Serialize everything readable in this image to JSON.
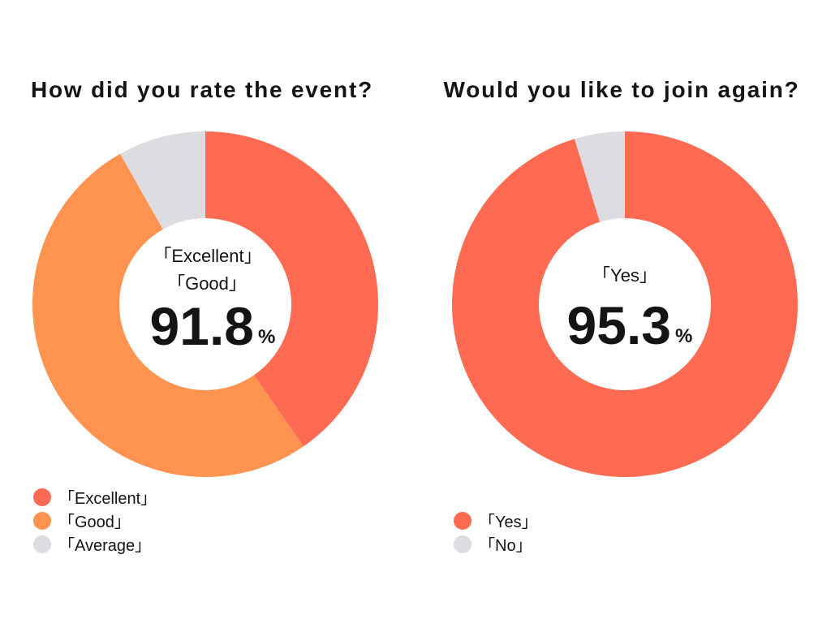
{
  "chart_data": [
    {
      "type": "pie",
      "title": "How did you rate the event?",
      "slices": [
        {
          "label": "「Excellent」",
          "value": 40.4,
          "color": "#FF6B52"
        },
        {
          "label": "「Good」",
          "value": 51.4,
          "color": "#FF934F"
        },
        {
          "label": "「Average」",
          "value": 8.2,
          "color": "#DDDCE0"
        }
      ],
      "center_label_lines": [
        "「Excellent」",
        "「Good」"
      ],
      "center_value": "91.8",
      "center_unit": "%",
      "legend_position": "bottom-left"
    },
    {
      "type": "pie",
      "title": "Would you like to join again?",
      "slices": [
        {
          "label": "「Yes」",
          "value": 95.3,
          "color": "#FF6B52"
        },
        {
          "label": "「No」",
          "value": 4.7,
          "color": "#DDDCE0"
        }
      ],
      "center_label_lines": [
        "「Yes」"
      ],
      "center_value": "95.3",
      "center_unit": "%",
      "legend_position": "bottom-left"
    }
  ]
}
